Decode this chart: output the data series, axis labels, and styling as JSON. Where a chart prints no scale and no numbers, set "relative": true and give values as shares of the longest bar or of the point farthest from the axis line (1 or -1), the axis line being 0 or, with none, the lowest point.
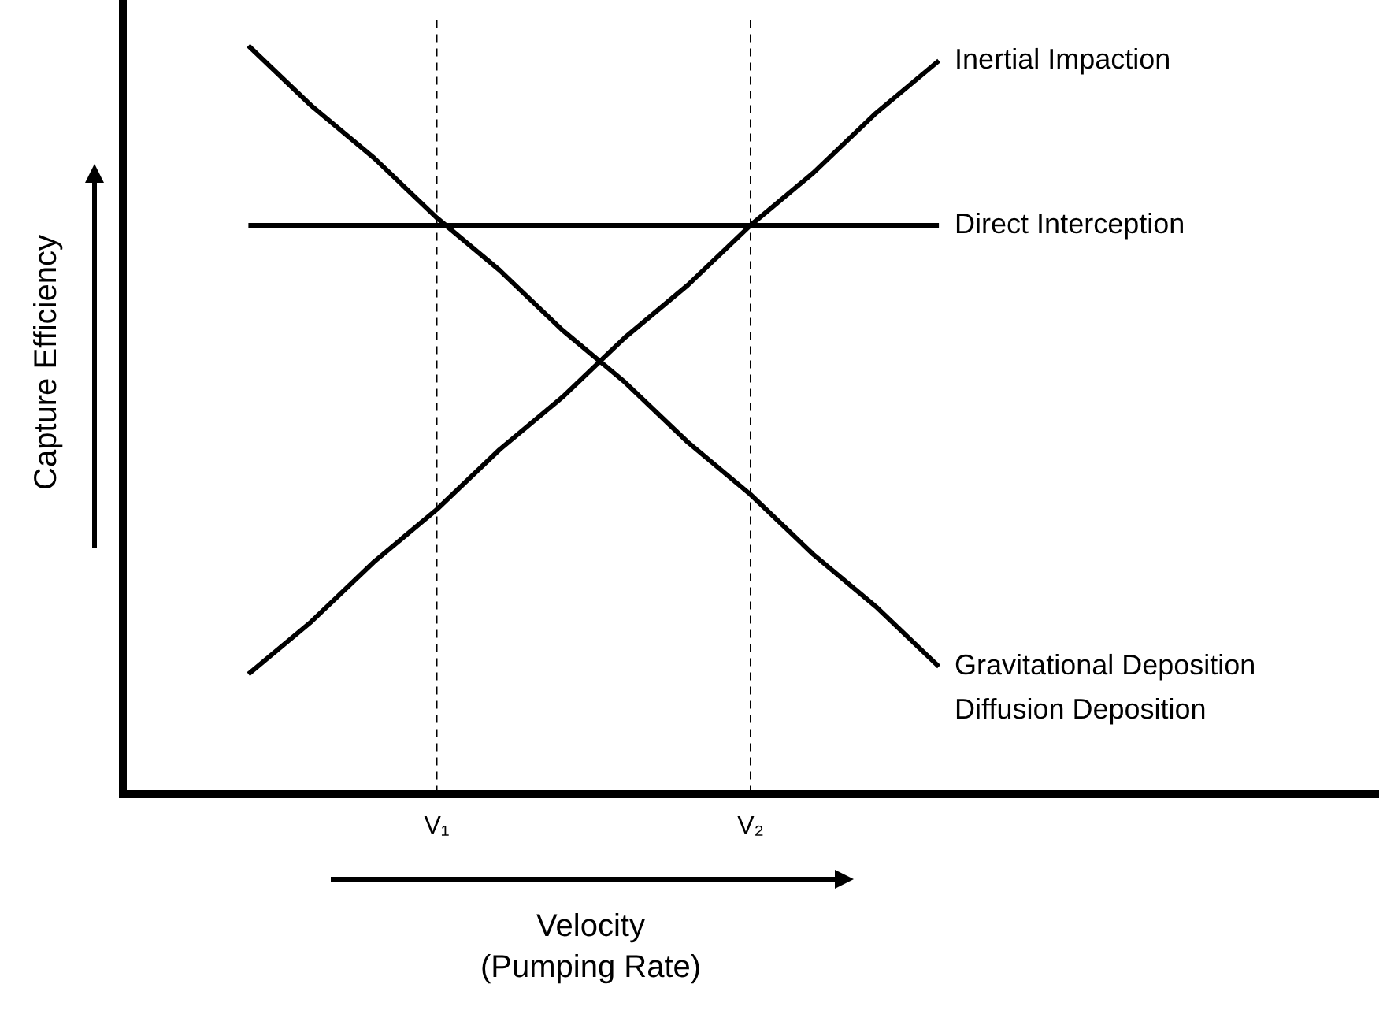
{
  "chart_data": {
    "type": "line",
    "relative": true,
    "xlabel": "Velocity\n(Pumping Rate)",
    "ylabel": "Capture Efficiency",
    "categories": [
      null,
      null,
      null,
      null,
      null,
      "V₁",
      null,
      null,
      null,
      null,
      "V₂",
      null,
      null,
      null,
      null,
      null,
      null,
      null,
      null,
      null,
      null
    ],
    "series": [
      {
        "name": "Inertial Impaction",
        "color": "#000000",
        "values": [
          null,
          null,
          0.16,
          0.23,
          0.31,
          0.38,
          0.46,
          0.53,
          0.61,
          0.68,
          0.76,
          0.83,
          0.91,
          0.98,
          null,
          null,
          null,
          null,
          null,
          null,
          null
        ]
      },
      {
        "name": "Direct Interception",
        "color": "#000000",
        "values": [
          null,
          null,
          0.76,
          0.76,
          0.76,
          0.76,
          0.76,
          0.76,
          0.76,
          0.76,
          0.76,
          0.76,
          0.76,
          0.76,
          null,
          null,
          null,
          null,
          null,
          null,
          null
        ]
      },
      {
        "name": "Gravitational Deposition\nDiffusion Deposition",
        "color": "#000000",
        "values": [
          null,
          null,
          1,
          0.92,
          0.85,
          0.77,
          0.7,
          0.62,
          0.55,
          0.47,
          0.4,
          0.32,
          0.25,
          0.17,
          null,
          null,
          null,
          null,
          null,
          null,
          null
        ]
      }
    ],
    "ref_lines": [
      {
        "axis": "x",
        "value": "V₁",
        "color": "#000000",
        "line_style": "dashed"
      },
      {
        "axis": "x",
        "value": "V₂",
        "color": "#000000",
        "line_style": "dashed"
      }
    ]
  }
}
